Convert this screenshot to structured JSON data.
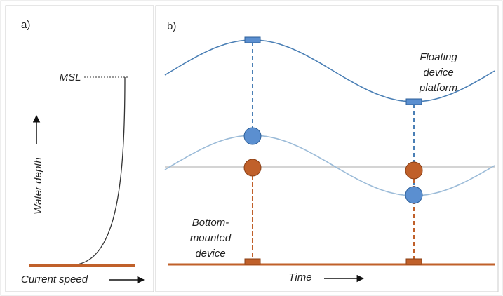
{
  "panel_a": {
    "label": "a)",
    "msl": "MSL",
    "y_axis_label": "Water depth",
    "x_axis_label": "Current speed"
  },
  "panel_b": {
    "label": "b)",
    "floating_label": [
      "Floating",
      "device",
      "platform"
    ],
    "bottom_label": [
      "Bottom-",
      "mounted",
      "device"
    ],
    "x_axis_label": "Time"
  }
}
